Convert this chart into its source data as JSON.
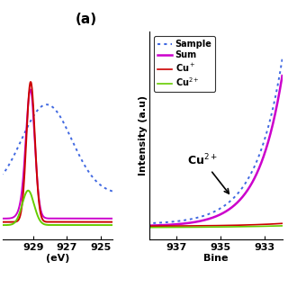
{
  "title_a": "(a)",
  "ylabel": "Intensity (a.u)",
  "xlabel_left": "(eV)",
  "xlabel_right": "Bine",
  "legend_labels": [
    "Sample",
    "Sum",
    "Cu+",
    "Cu2+"
  ],
  "legend_colors": [
    "#4169E1",
    "#CC00CC",
    "#CC0000",
    "#66CC00"
  ],
  "annotation_text": "Cu2+",
  "left_xticks": [
    929,
    927,
    925
  ],
  "right_xticks": [
    937,
    935,
    933
  ],
  "bg_color": "#ffffff",
  "sample_color": "#4169E1",
  "sum_color": "#CC00CC",
  "cu_plus_color": "#CC0000",
  "cu2_color": "#66CC00"
}
